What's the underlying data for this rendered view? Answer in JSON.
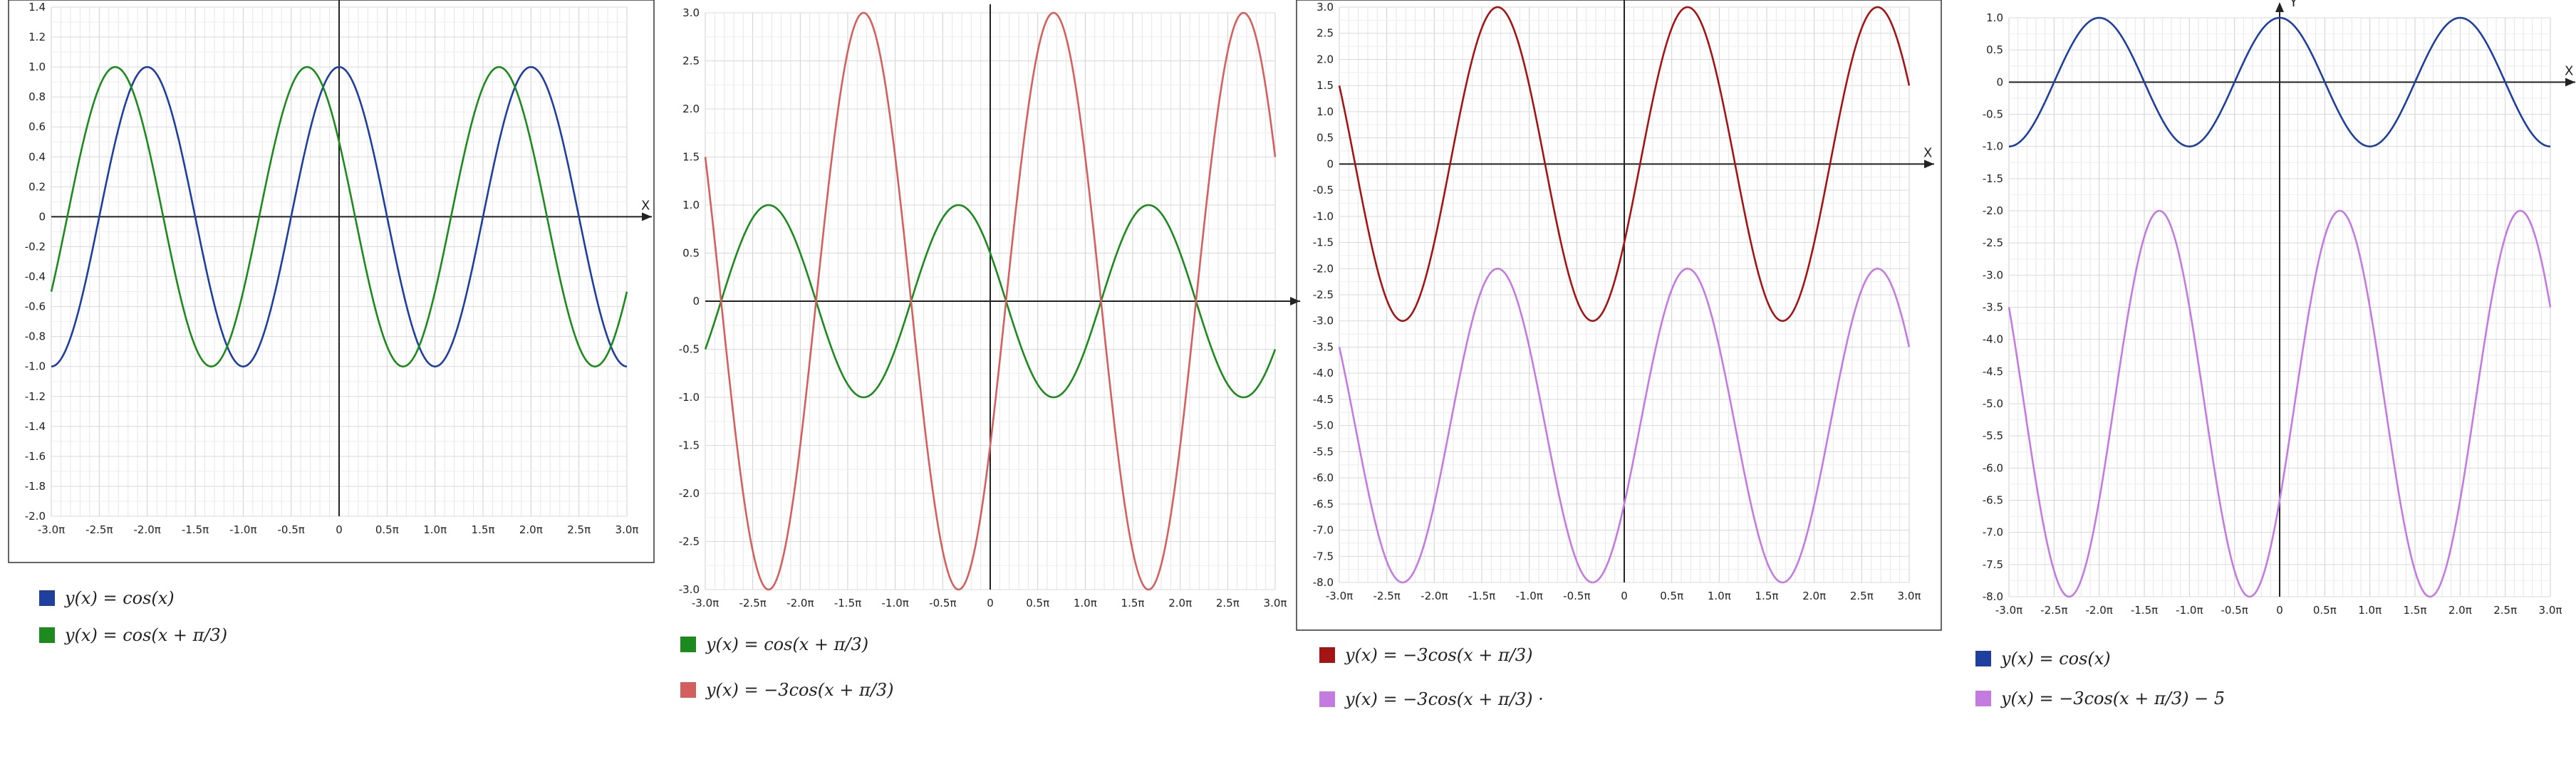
{
  "chart_data": [
    {
      "type": "line",
      "axis_x_label": "X",
      "axis_y_label": "",
      "xlim_pi": [
        -3,
        3
      ],
      "ylim": [
        -2,
        1.4
      ],
      "y_step": 0.2,
      "x_ticks": [
        "-3.0π",
        "-2.5π",
        "-2.0π",
        "-1.5π",
        "-1.0π",
        "-0.5π",
        "0",
        "0.5π",
        "1.0π",
        "1.5π",
        "2.0π",
        "2.5π",
        "3.0π"
      ],
      "y_ticks": [
        "1.4",
        "1.2",
        "1.0",
        "0.8",
        "0.6",
        "0.4",
        "0.2",
        "0",
        "-0.2",
        "-0.4",
        "-0.6",
        "-0.8",
        "-1.0",
        "-1.2",
        "-1.4",
        "-1.6",
        "-1.8",
        "-2.0"
      ],
      "grid": true,
      "series": [
        {
          "label": "y(x) = cos(x)",
          "color": "#1f3f9e",
          "amplitude": 1,
          "phase_pi": 0,
          "offset": 0
        },
        {
          "label": "y(x) = cos(x + π/3)",
          "color": "#1c8a1c",
          "amplitude": 1,
          "phase_pi": 0.3333,
          "offset": 0
        }
      ]
    },
    {
      "type": "line",
      "axis_x_label": "",
      "axis_y_label": "",
      "xlim_pi": [
        -3,
        3
      ],
      "ylim": [
        -3,
        3
      ],
      "y_step": 0.5,
      "x_ticks": [
        "-3.0π",
        "-2.5π",
        "-2.0π",
        "-1.5π",
        "-1.0π",
        "-0.5π",
        "0",
        "0.5π",
        "1.0π",
        "1.5π",
        "2.0π",
        "2.5π",
        "3.0π"
      ],
      "y_ticks": [
        "3.0",
        "2.5",
        "2.0",
        "1.5",
        "1.0",
        "0.5",
        "0",
        "-0.5",
        "-1.0",
        "-1.5",
        "-2.0",
        "-2.5",
        "-3.0"
      ],
      "grid": true,
      "series": [
        {
          "label": "y(x) = cos(x + π/3)",
          "color": "#1c8a1c",
          "amplitude": 1,
          "phase_pi": 0.3333,
          "offset": 0
        },
        {
          "label": "y(x) = −3cos(x + π/3)",
          "color": "#d35f5f",
          "amplitude": -3,
          "phase_pi": 0.3333,
          "offset": 0
        }
      ]
    },
    {
      "type": "line",
      "axis_x_label": "X",
      "axis_y_label": "",
      "xlim_pi": [
        -3,
        3
      ],
      "ylim": [
        -8,
        3
      ],
      "y_step": 0.5,
      "x_ticks": [
        "-3.0π",
        "-2.5π",
        "-2.0π",
        "-1.5π",
        "-1.0π",
        "-0.5π",
        "0",
        "0.5π",
        "1.0π",
        "1.5π",
        "2.0π",
        "2.5π",
        "3.0π"
      ],
      "y_ticks": [
        "3.0",
        "2.5",
        "2.0",
        "1.5",
        "1.0",
        "0.5",
        "0",
        "-0.5",
        "-1.0",
        "-1.5",
        "-2.0",
        "-2.5",
        "-3.0",
        "-3.5",
        "-4.0",
        "-4.5",
        "-5.0",
        "-5.5",
        "-6.0",
        "-6.5",
        "-7.0",
        "-7.5",
        "-8.0"
      ],
      "grid": true,
      "series": [
        {
          "label": "y(x) = −3cos(x + π/3)",
          "color": "#a31515",
          "amplitude": -3,
          "phase_pi": 0.3333,
          "offset": 0
        },
        {
          "label": "y(x) = −3cos(x + π/3) ·",
          "color": "#c47be0",
          "amplitude": -3,
          "phase_pi": 0.3333,
          "offset": -5
        }
      ]
    },
    {
      "type": "line",
      "axis_x_label": "X",
      "axis_y_label": "Y",
      "xlim_pi": [
        -3,
        3
      ],
      "ylim": [
        -8,
        1
      ],
      "y_step": 0.5,
      "x_ticks": [
        "-3.0π",
        "-2.5π",
        "-2.0π",
        "-1.5π",
        "-1.0π",
        "-0.5π",
        "0",
        "0.5π",
        "1.0π",
        "1.5π",
        "2.0π",
        "2.5π",
        "3.0π"
      ],
      "y_ticks": [
        "1.0",
        "0.5",
        "0",
        "-0.5",
        "-1.0",
        "-1.5",
        "-2.0",
        "-2.5",
        "-3.0",
        "-3.5",
        "-4.0",
        "-4.5",
        "-5.0",
        "-5.5",
        "-6.0",
        "-6.5",
        "-7.0",
        "-7.5",
        "-8.0"
      ],
      "grid": true,
      "series": [
        {
          "label": "y(x) = cos(x)",
          "color": "#1f3f9e",
          "amplitude": 1,
          "phase_pi": 0,
          "offset": 0
        },
        {
          "label": "y(x) = −3cos(x + π/3) − 5",
          "color": "#c47be0",
          "amplitude": -3,
          "phase_pi": 0.3333,
          "offset": -5
        }
      ]
    }
  ]
}
